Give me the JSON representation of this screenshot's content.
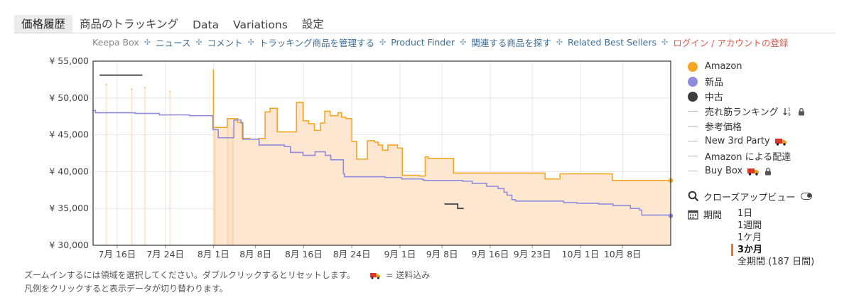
{
  "tabs": [
    {
      "label": "価格履歴",
      "active": true
    },
    {
      "label": "商品のトラッキング",
      "active": false
    },
    {
      "label": "Data",
      "active": false
    },
    {
      "label": "Variations",
      "active": false
    },
    {
      "label": "設定",
      "active": false
    }
  ],
  "subnav": [
    {
      "label": "Keepa Box",
      "style": "plain"
    },
    {
      "label": "ニュース",
      "style": "link"
    },
    {
      "label": "コメント",
      "style": "link"
    },
    {
      "label": "トラッキング商品を管理する",
      "style": "link"
    },
    {
      "label": "Product Finder",
      "style": "link"
    },
    {
      "label": "関連する商品を探す",
      "style": "link"
    },
    {
      "label": "Related Best Sellers",
      "style": "link"
    },
    {
      "label": "ログイン / アカウントの登録",
      "style": "login"
    }
  ],
  "legend": {
    "amazon": {
      "label": "Amazon",
      "color": "#f5a623"
    },
    "new": {
      "label": "新品",
      "color": "#8f8ce0"
    },
    "used": {
      "label": "中古",
      "color": "#3d3d3d"
    },
    "sales_rank": {
      "label": "売れ筋ランキング",
      "icons": [
        "sort-icon",
        "lock-icon"
      ]
    },
    "list_price": {
      "label": "参考価格"
    },
    "new_3rd_party": {
      "label": "New 3rd Party",
      "icons": [
        "delivery-truck-icon"
      ]
    },
    "fba": {
      "label": "Amazon による配達"
    },
    "buy_box": {
      "label": "Buy Box",
      "icons": [
        "delivery-truck-icon",
        "lock-icon"
      ]
    }
  },
  "closeup": {
    "label": "クローズアップビュー",
    "icon": "toggle-icon"
  },
  "range": {
    "label": "期間",
    "icon": "calendar-icon",
    "options": [
      "1日",
      "1週間",
      "1ケ月",
      "3か月",
      "全期間 (187 日間)"
    ],
    "selected": "3か月"
  },
  "footer": {
    "line1": "ズームインするには領域を選択してください。ダブルクリックするとリセットします。",
    "truck_note": "= 送料込み",
    "line2": "凡例をクリックすると表示データが切り替わります。"
  },
  "colors": {
    "amazon_line": "#f5a623",
    "amazon_fill": "#fde7d1",
    "new_line": "#8f8ce0",
    "used_line": "#444444",
    "grid": "#e6e6e6"
  },
  "chart_data": {
    "type": "line",
    "x_unit": "day (2023-07-01 = 1)",
    "xlim": [
      12,
      108
    ],
    "ylim": [
      30000,
      55000
    ],
    "y_ticks": [
      {
        "value": 30000,
        "label": "¥ 30,000"
      },
      {
        "value": 35000,
        "label": "¥ 35,000"
      },
      {
        "value": 40000,
        "label": "¥ 40,000"
      },
      {
        "value": 45000,
        "label": "¥ 45,000"
      },
      {
        "value": 50000,
        "label": "¥ 50,000"
      },
      {
        "value": 55000,
        "label": "¥ 55,000"
      }
    ],
    "x_ticks": [
      {
        "value": 16,
        "label": "7月 16日"
      },
      {
        "value": 24,
        "label": "7月 24日"
      },
      {
        "value": 32,
        "label": "8月 1日"
      },
      {
        "value": 39,
        "label": "8月 8日"
      },
      {
        "value": 47,
        "label": "8月 16日"
      },
      {
        "value": 55,
        "label": "8月 24日"
      },
      {
        "value": 63,
        "label": "9月 1日"
      },
      {
        "value": 70,
        "label": "9月 8日"
      },
      {
        "value": 78,
        "label": "9月 16日"
      },
      {
        "value": 85,
        "label": "9月 23日"
      },
      {
        "value": 93,
        "label": "10月 1日"
      },
      {
        "value": 100,
        "label": "10月 8日"
      }
    ],
    "series": [
      {
        "name": "Amazon",
        "step": true,
        "fill": true,
        "spikes": [
          [
            14.2,
            51800
          ],
          [
            18.4,
            51200
          ],
          [
            20.6,
            51400
          ],
          [
            24.8,
            50900
          ]
        ],
        "points": [
          [
            31.9,
            53800
          ],
          [
            32.0,
            46000
          ],
          [
            34.3,
            47200
          ],
          [
            35.1,
            47200
          ],
          [
            36.0,
            46700
          ],
          [
            36.8,
            44500
          ],
          [
            38.1,
            44400
          ],
          [
            39.5,
            44500
          ],
          [
            40.6,
            48100
          ],
          [
            41.4,
            48600
          ],
          [
            42.6,
            45400
          ],
          [
            45.4,
            45400
          ],
          [
            45.8,
            49400
          ],
          [
            46.9,
            46900
          ],
          [
            47.8,
            46500
          ],
          [
            48.8,
            45600
          ],
          [
            49.8,
            46600
          ],
          [
            50.5,
            48200
          ],
          [
            51.4,
            47600
          ],
          [
            52.7,
            48000
          ],
          [
            53.3,
            47400
          ],
          [
            54.0,
            47200
          ],
          [
            55.0,
            44100
          ],
          [
            55.8,
            41700
          ],
          [
            57.6,
            44200
          ],
          [
            58.8,
            44000
          ],
          [
            59.4,
            43600
          ],
          [
            60.1,
            42900
          ],
          [
            61.0,
            43600
          ],
          [
            62.0,
            43600
          ],
          [
            62.6,
            43200
          ],
          [
            63.4,
            39500
          ],
          [
            66.2,
            39400
          ],
          [
            67.2,
            42000
          ],
          [
            67.7,
            41800
          ],
          [
            71.4,
            41800
          ],
          [
            71.9,
            39800
          ],
          [
            87.1,
            39000
          ],
          [
            89.6,
            39700
          ],
          [
            98.3,
            38800
          ],
          [
            108.0,
            38800
          ]
        ]
      },
      {
        "name": "新品",
        "step": true,
        "fill": false,
        "points": [
          [
            12.0,
            48300
          ],
          [
            12.4,
            48000
          ],
          [
            19.0,
            47900
          ],
          [
            23.0,
            47700
          ],
          [
            28.0,
            47600
          ],
          [
            31.9,
            45700
          ],
          [
            32.8,
            44600
          ],
          [
            35.4,
            47000
          ],
          [
            36.6,
            46600
          ],
          [
            36.9,
            44400
          ],
          [
            39.6,
            43600
          ],
          [
            43.8,
            43400
          ],
          [
            44.8,
            42600
          ],
          [
            46.2,
            42600
          ],
          [
            46.9,
            42200
          ],
          [
            48.9,
            42700
          ],
          [
            50.6,
            42200
          ],
          [
            51.5,
            41600
          ],
          [
            53.6,
            39700
          ],
          [
            53.8,
            39300
          ],
          [
            60.5,
            39200
          ],
          [
            63.3,
            39000
          ],
          [
            66.8,
            38900
          ],
          [
            67.0,
            38800
          ],
          [
            73.4,
            38700
          ],
          [
            75.0,
            38400
          ],
          [
            77.4,
            38000
          ],
          [
            79.3,
            37700
          ],
          [
            80.3,
            37200
          ],
          [
            80.8,
            36800
          ],
          [
            81.6,
            36200
          ],
          [
            82.2,
            36000
          ],
          [
            90.2,
            35800
          ],
          [
            92.4,
            35700
          ],
          [
            96.0,
            35600
          ],
          [
            98.4,
            35400
          ],
          [
            101.3,
            35000
          ],
          [
            102.8,
            34800
          ],
          [
            103.2,
            34100
          ],
          [
            108.0,
            34000
          ]
        ]
      },
      {
        "name": "中古",
        "step": true,
        "fill": false,
        "points": [
          [
            13.1,
            53100
          ],
          [
            20.2,
            53100
          ]
        ],
        "points2": [
          [
            70.4,
            35600
          ],
          [
            72.4,
            35600
          ],
          [
            72.6,
            35000
          ],
          [
            73.6,
            35000
          ]
        ]
      }
    ]
  }
}
